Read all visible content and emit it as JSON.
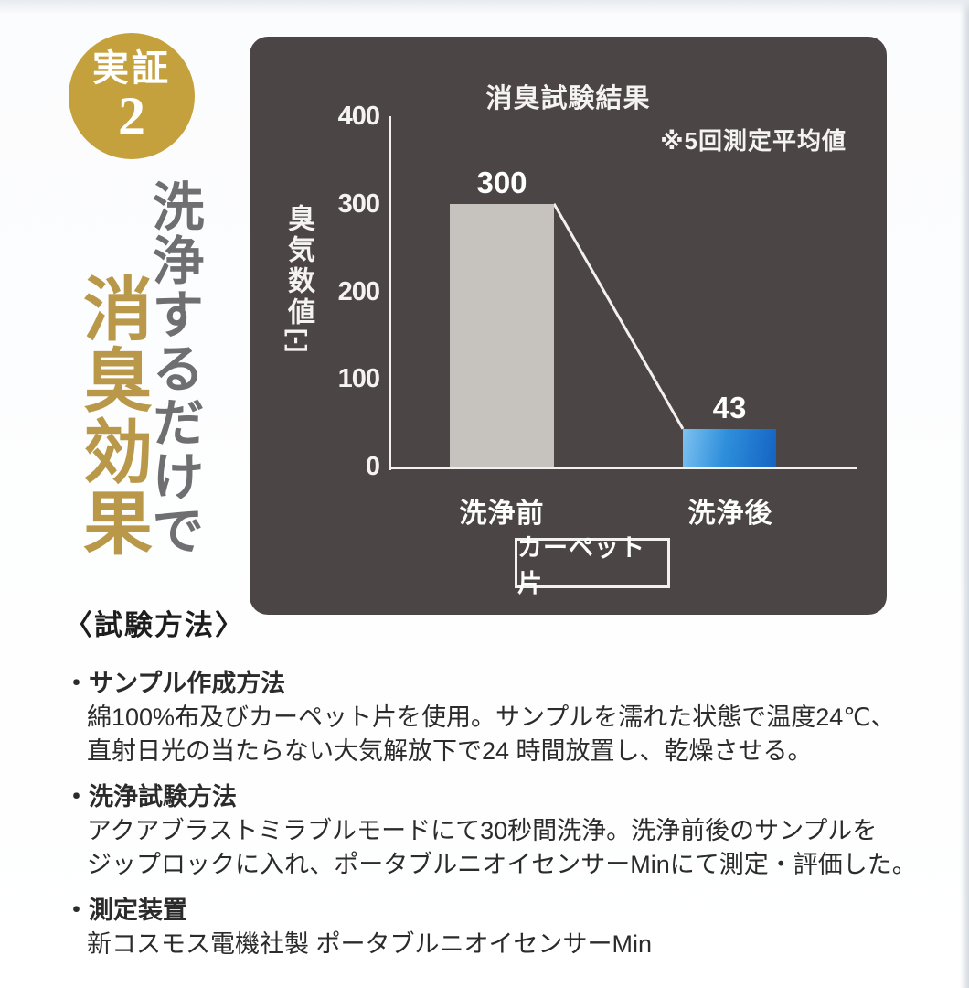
{
  "badge": {
    "title": "実証",
    "number": "2"
  },
  "headline": {
    "gray_line": "洗浄するだけで",
    "gold_line": "消臭効果",
    "gray_color": "#6f6f72",
    "gold_color": "#b9984a"
  },
  "chart": {
    "title": "消臭試験結果",
    "note": "※5回測定平均値",
    "y_axis_label": "臭気数値",
    "y_axis_unit": "[-]",
    "sample_label": "カーペット片",
    "panel_color": "#4b4546",
    "bar_before_color": "#c6c3be",
    "bar_after_colors": [
      "#7dc2f0",
      "#1463c2"
    ]
  },
  "chart_data": {
    "type": "bar",
    "title": "消臭試験結果",
    "annotation": "※5回測定平均値",
    "categories": [
      "洗浄前",
      "洗浄後"
    ],
    "values": [
      300,
      43
    ],
    "xlabel": "",
    "ylabel": "臭気数値[-]",
    "ylim": [
      0,
      400
    ],
    "yticks": [
      400,
      300,
      200,
      100,
      0
    ],
    "legend": "none",
    "grid": false,
    "connector_line": true,
    "sample_note": "カーペット片"
  },
  "method": {
    "heading": "〈試験方法〉",
    "sections": [
      {
        "title": "・サンプル作成方法",
        "lines": [
          "綿100%布及びカーペット片を使用。サンプルを濡れた状態で温度24℃、",
          "直射日光の当たらない大気解放下で24 時間放置し、乾燥させる。"
        ]
      },
      {
        "title": "・洗浄試験方法",
        "lines": [
          "アクアブラストミラブルモードにて30秒間洗浄。洗浄前後のサンプルを",
          "ジップロックに入れ、ポータブルニオイセンサーMinにて測定・評価した。"
        ]
      },
      {
        "title": "・測定装置",
        "lines": [
          "新コスモス電機社製 ポータブルニオイセンサーMin"
        ]
      }
    ]
  }
}
